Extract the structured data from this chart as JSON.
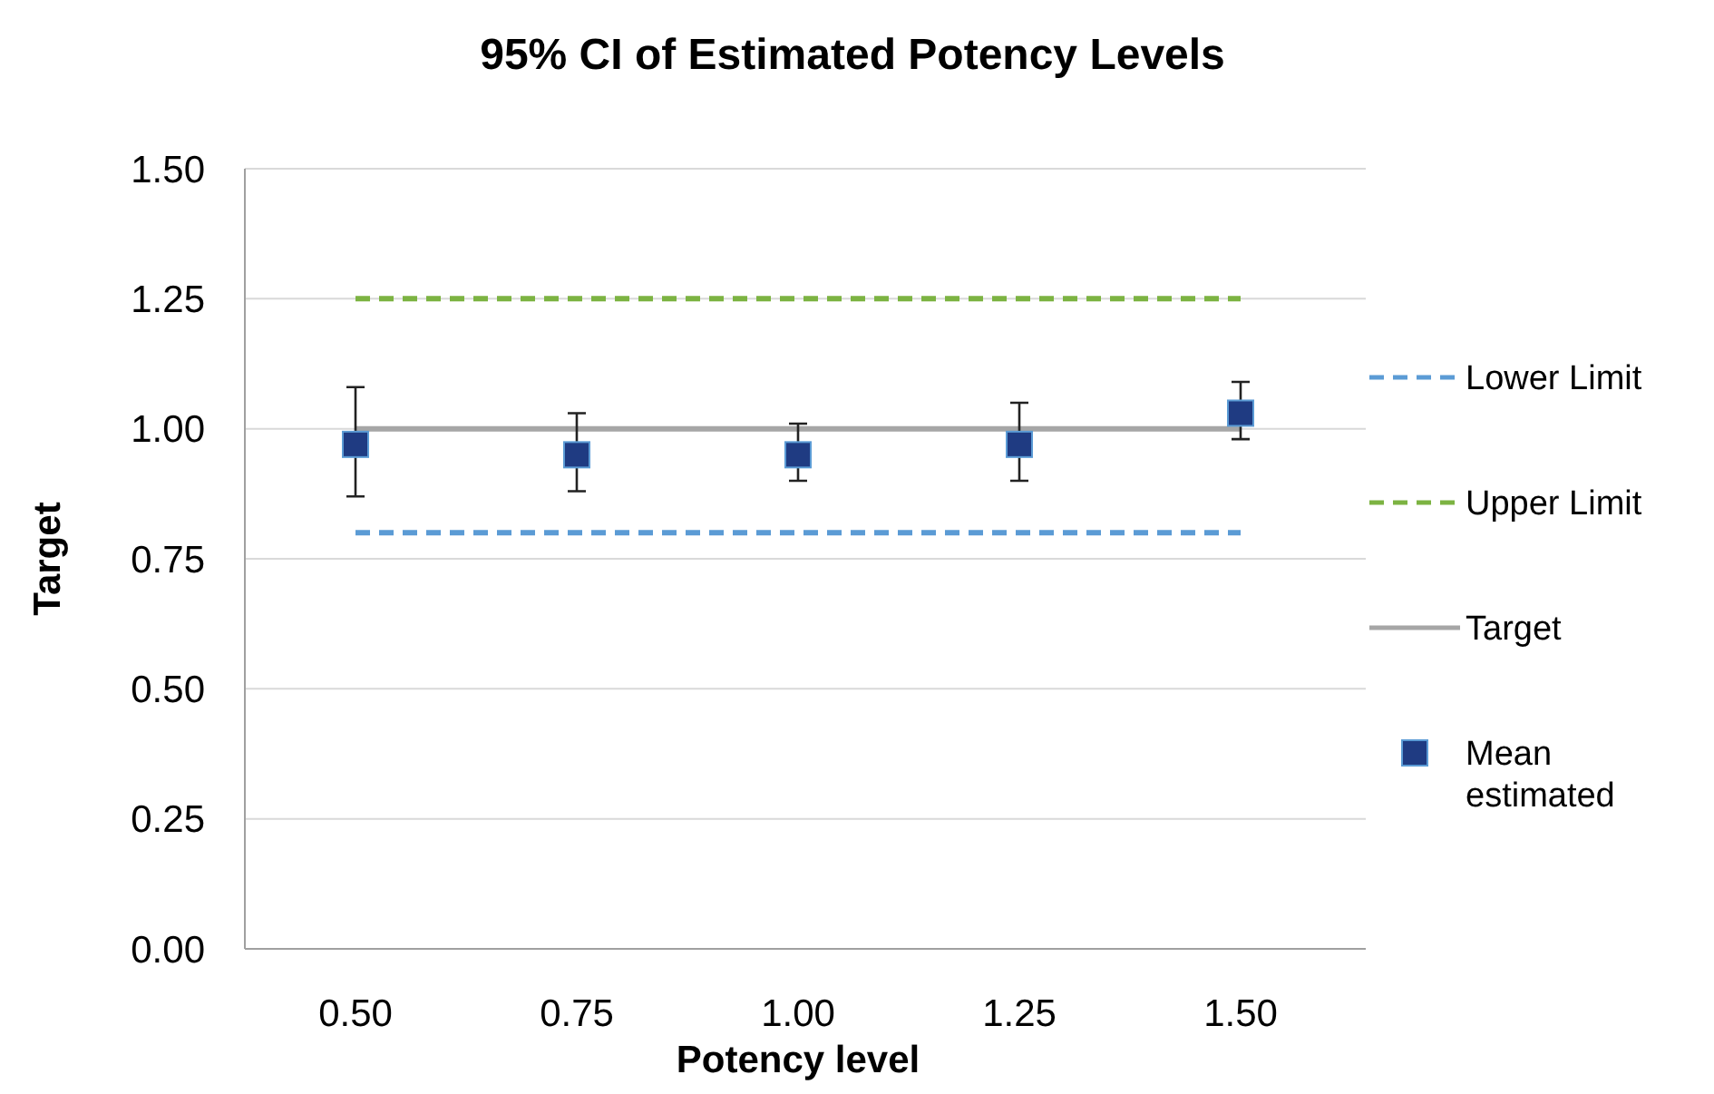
{
  "chart_data": {
    "type": "line",
    "title": "95% CI of Estimated Potency Levels",
    "xlabel": "Potency level",
    "ylabel": "Target",
    "categories": [
      "0.50",
      "0.75",
      "1.00",
      "1.25",
      "1.50"
    ],
    "series": [
      {
        "name": "Lower Limit",
        "color": "#5b9bd5",
        "line_style": "dashed",
        "values": [
          0.8,
          0.8,
          0.8,
          0.8,
          0.8
        ]
      },
      {
        "name": "Upper Limit",
        "color": "#7cb342",
        "line_style": "dashed",
        "values": [
          1.25,
          1.25,
          1.25,
          1.25,
          1.25
        ]
      },
      {
        "name": "Target",
        "color": "#a6a6a6",
        "line_style": "solid",
        "values": [
          1,
          1,
          1,
          1,
          1
        ]
      },
      {
        "name": "Mean estimated",
        "type": "scatter",
        "color": "#1f3b82",
        "marker": "square",
        "values": [
          0.97,
          0.95,
          0.95,
          0.97,
          1.03
        ],
        "errors": [
          [
            0.87,
            1.08
          ],
          [
            0.88,
            1.03
          ],
          [
            0.9,
            1.01
          ],
          [
            0.9,
            1.05
          ],
          [
            0.98,
            1.09
          ]
        ]
      }
    ],
    "ylim": [
      0,
      1.5
    ],
    "yticks": [
      {
        "value": 0,
        "label": "0.00"
      },
      {
        "value": 0.25,
        "label": "0.25"
      },
      {
        "value": 0.5,
        "label": "0.50"
      },
      {
        "value": 0.75,
        "label": "0.75"
      },
      {
        "value": 1,
        "label": "1.00"
      },
      {
        "value": 1.25,
        "label": "1.25"
      },
      {
        "value": 1.5,
        "label": "1.50"
      }
    ],
    "grid": "y",
    "legend": "right"
  }
}
